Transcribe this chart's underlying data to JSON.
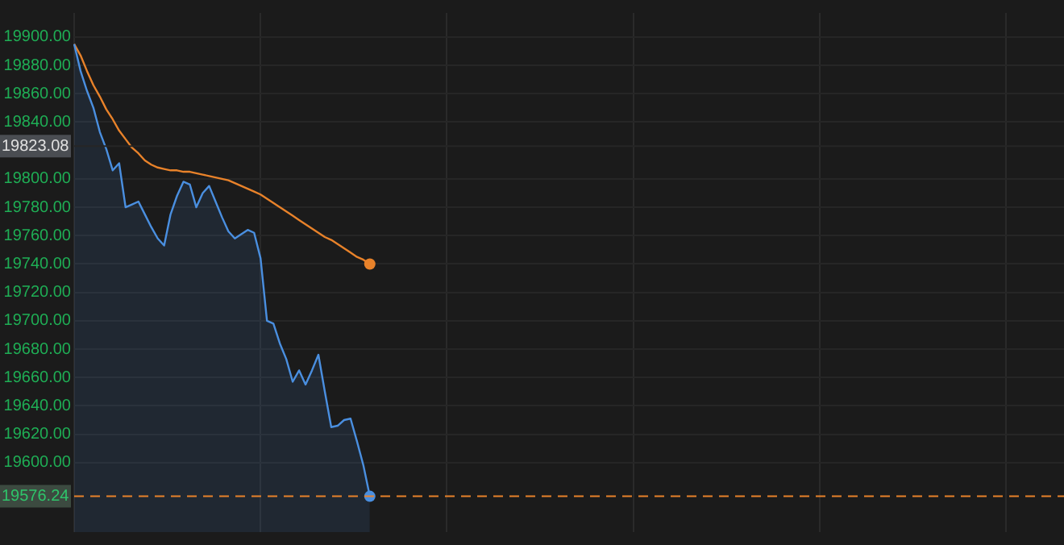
{
  "chart_data": {
    "type": "line",
    "categories": [
      null,
      null,
      null,
      null,
      null,
      null,
      null,
      null,
      null,
      null,
      null,
      null,
      null,
      null,
      null,
      null,
      null,
      null,
      null,
      null,
      null,
      null,
      null,
      null,
      null,
      null,
      null,
      null,
      null,
      null,
      null,
      null,
      null,
      null,
      null,
      null,
      null,
      null,
      null,
      null,
      null,
      null,
      null,
      null,
      null,
      null,
      null,
      null,
      null,
      null,
      null,
      null,
      null,
      null,
      null,
      null,
      null,
      null,
      null,
      null,
      null,
      null,
      null,
      null,
      null,
      null,
      null,
      null,
      null,
      null,
      null,
      null,
      null,
      null,
      null,
      null,
      null,
      null,
      null,
      null,
      null,
      null,
      null,
      null,
      null,
      null,
      null,
      null,
      null,
      null,
      null,
      null,
      null,
      null,
      null,
      null,
      null,
      null,
      null,
      null,
      null,
      null,
      null,
      null,
      null,
      null,
      null,
      null,
      null,
      null,
      null,
      null,
      null,
      null,
      null,
      null,
      null,
      null,
      null,
      null,
      null,
      null,
      null,
      null,
      null,
      null,
      null,
      null,
      null,
      null,
      null,
      null,
      null,
      null,
      null,
      null,
      null,
      null,
      null,
      null,
      null,
      null,
      null,
      null,
      null,
      null,
      null,
      null,
      null,
      null,
      null,
      null,
      null,
      null,
      null
    ],
    "series": [
      {
        "type": "area",
        "color": "#4a8fe0",
        "values": [
          19895,
          19876,
          19862,
          19850,
          19833,
          19821,
          19806,
          19811,
          19780,
          19782,
          19784,
          19775,
          19766,
          19758,
          19753,
          19775,
          19788,
          19798,
          19796,
          19780,
          19790,
          19795,
          19784,
          19773,
          19763,
          19758,
          19761,
          19764,
          19762,
          19744,
          19700,
          19698,
          19684,
          19673,
          19657,
          19665,
          19655,
          19665,
          19676,
          19650,
          19625,
          19626,
          19630,
          19631,
          19615,
          19598,
          19576.24,
          null,
          null,
          null,
          null,
          null,
          null,
          null,
          null,
          null,
          null,
          null,
          null,
          null,
          null,
          null,
          null,
          null,
          null,
          null,
          null,
          null,
          null,
          null,
          null,
          null,
          null,
          null,
          null,
          null,
          null,
          null,
          null,
          null,
          null,
          null,
          null,
          null,
          null,
          null,
          null,
          null,
          null,
          null,
          null,
          null,
          null,
          null,
          null,
          null,
          null,
          null,
          null,
          null,
          null,
          null,
          null,
          null,
          null,
          null,
          null,
          null,
          null,
          null,
          null,
          null,
          null,
          null,
          null,
          null,
          null,
          null,
          null,
          null,
          null,
          null,
          null,
          null,
          null,
          null,
          null,
          null,
          null,
          null,
          null,
          null,
          null,
          null,
          null,
          null,
          null,
          null,
          null,
          null,
          null,
          null,
          null,
          null,
          null,
          null,
          null,
          null,
          null,
          null,
          null,
          null,
          null,
          null,
          null
        ]
      },
      {
        "color": "#e8822a",
        "values": [
          19895,
          19887,
          19876,
          19866,
          19858,
          19849,
          19842,
          19834,
          19828,
          19822,
          19818,
          19813,
          19810,
          19808,
          19807,
          19806,
          19806,
          19805,
          19805,
          19804,
          19803,
          19802,
          19801,
          19800,
          19799,
          19797,
          19795,
          19793,
          19791,
          19789,
          19786,
          19783,
          19780,
          19777,
          19774,
          19771,
          19768,
          19765,
          19762,
          19759,
          19757,
          19754,
          19751,
          19748,
          19745,
          19743,
          19740,
          null,
          null,
          null,
          null,
          null,
          null,
          null,
          null,
          null,
          null,
          null,
          null,
          null,
          null,
          null,
          null,
          null,
          null,
          null,
          null,
          null,
          null,
          null,
          null,
          null,
          null,
          null,
          null,
          null,
          null,
          null,
          null,
          null,
          null,
          null,
          null,
          null,
          null,
          null,
          null,
          null,
          null,
          null,
          null,
          null,
          null,
          null,
          null,
          null,
          null,
          null,
          null,
          null,
          null,
          null,
          null,
          null,
          null,
          null,
          null,
          null,
          null,
          null,
          null,
          null,
          null,
          null,
          null,
          null,
          null,
          null,
          null,
          null,
          null,
          null,
          null,
          null,
          null,
          null,
          null,
          null,
          null,
          null,
          null,
          null,
          null,
          null,
          null,
          null,
          null,
          null,
          null,
          null,
          null,
          null,
          null,
          null,
          null,
          null,
          null,
          null,
          null,
          null,
          null,
          null,
          null,
          null,
          null
        ]
      }
    ],
    "ylim": [
      19551,
      19917
    ],
    "yticks": [
      {
        "value": 19600,
        "label": "19600.00"
      },
      {
        "value": 19620,
        "label": "19620.00"
      },
      {
        "value": 19640,
        "label": "19640.00"
      },
      {
        "value": 19660,
        "label": "19660.00"
      },
      {
        "value": 19680,
        "label": "19680.00"
      },
      {
        "value": 19700,
        "label": "19700.00"
      },
      {
        "value": 19720,
        "label": "19720.00"
      },
      {
        "value": 19740,
        "label": "19740.00"
      },
      {
        "value": 19760,
        "label": "19760.00"
      },
      {
        "value": 19780,
        "label": "19780.00"
      },
      {
        "value": 19800,
        "label": "19800.00"
      },
      {
        "value": 19840,
        "label": "19840.00"
      },
      {
        "value": 19860,
        "label": "19860.00"
      },
      {
        "value": 19880,
        "label": "19880.00"
      },
      {
        "value": 19900,
        "label": "19900.00"
      }
    ],
    "ref_lines": [
      {
        "axis": "y",
        "value": 19823.08,
        "label": "19823.08",
        "color": "#262626"
      },
      {
        "axis": "y",
        "value": 19576.24,
        "label": "19576.24",
        "color": "#e8822a",
        "line_style": "dashed"
      }
    ],
    "grid": true,
    "legend": false,
    "marker": "none",
    "line_style": "solid",
    "tick_labels": "y"
  }
}
